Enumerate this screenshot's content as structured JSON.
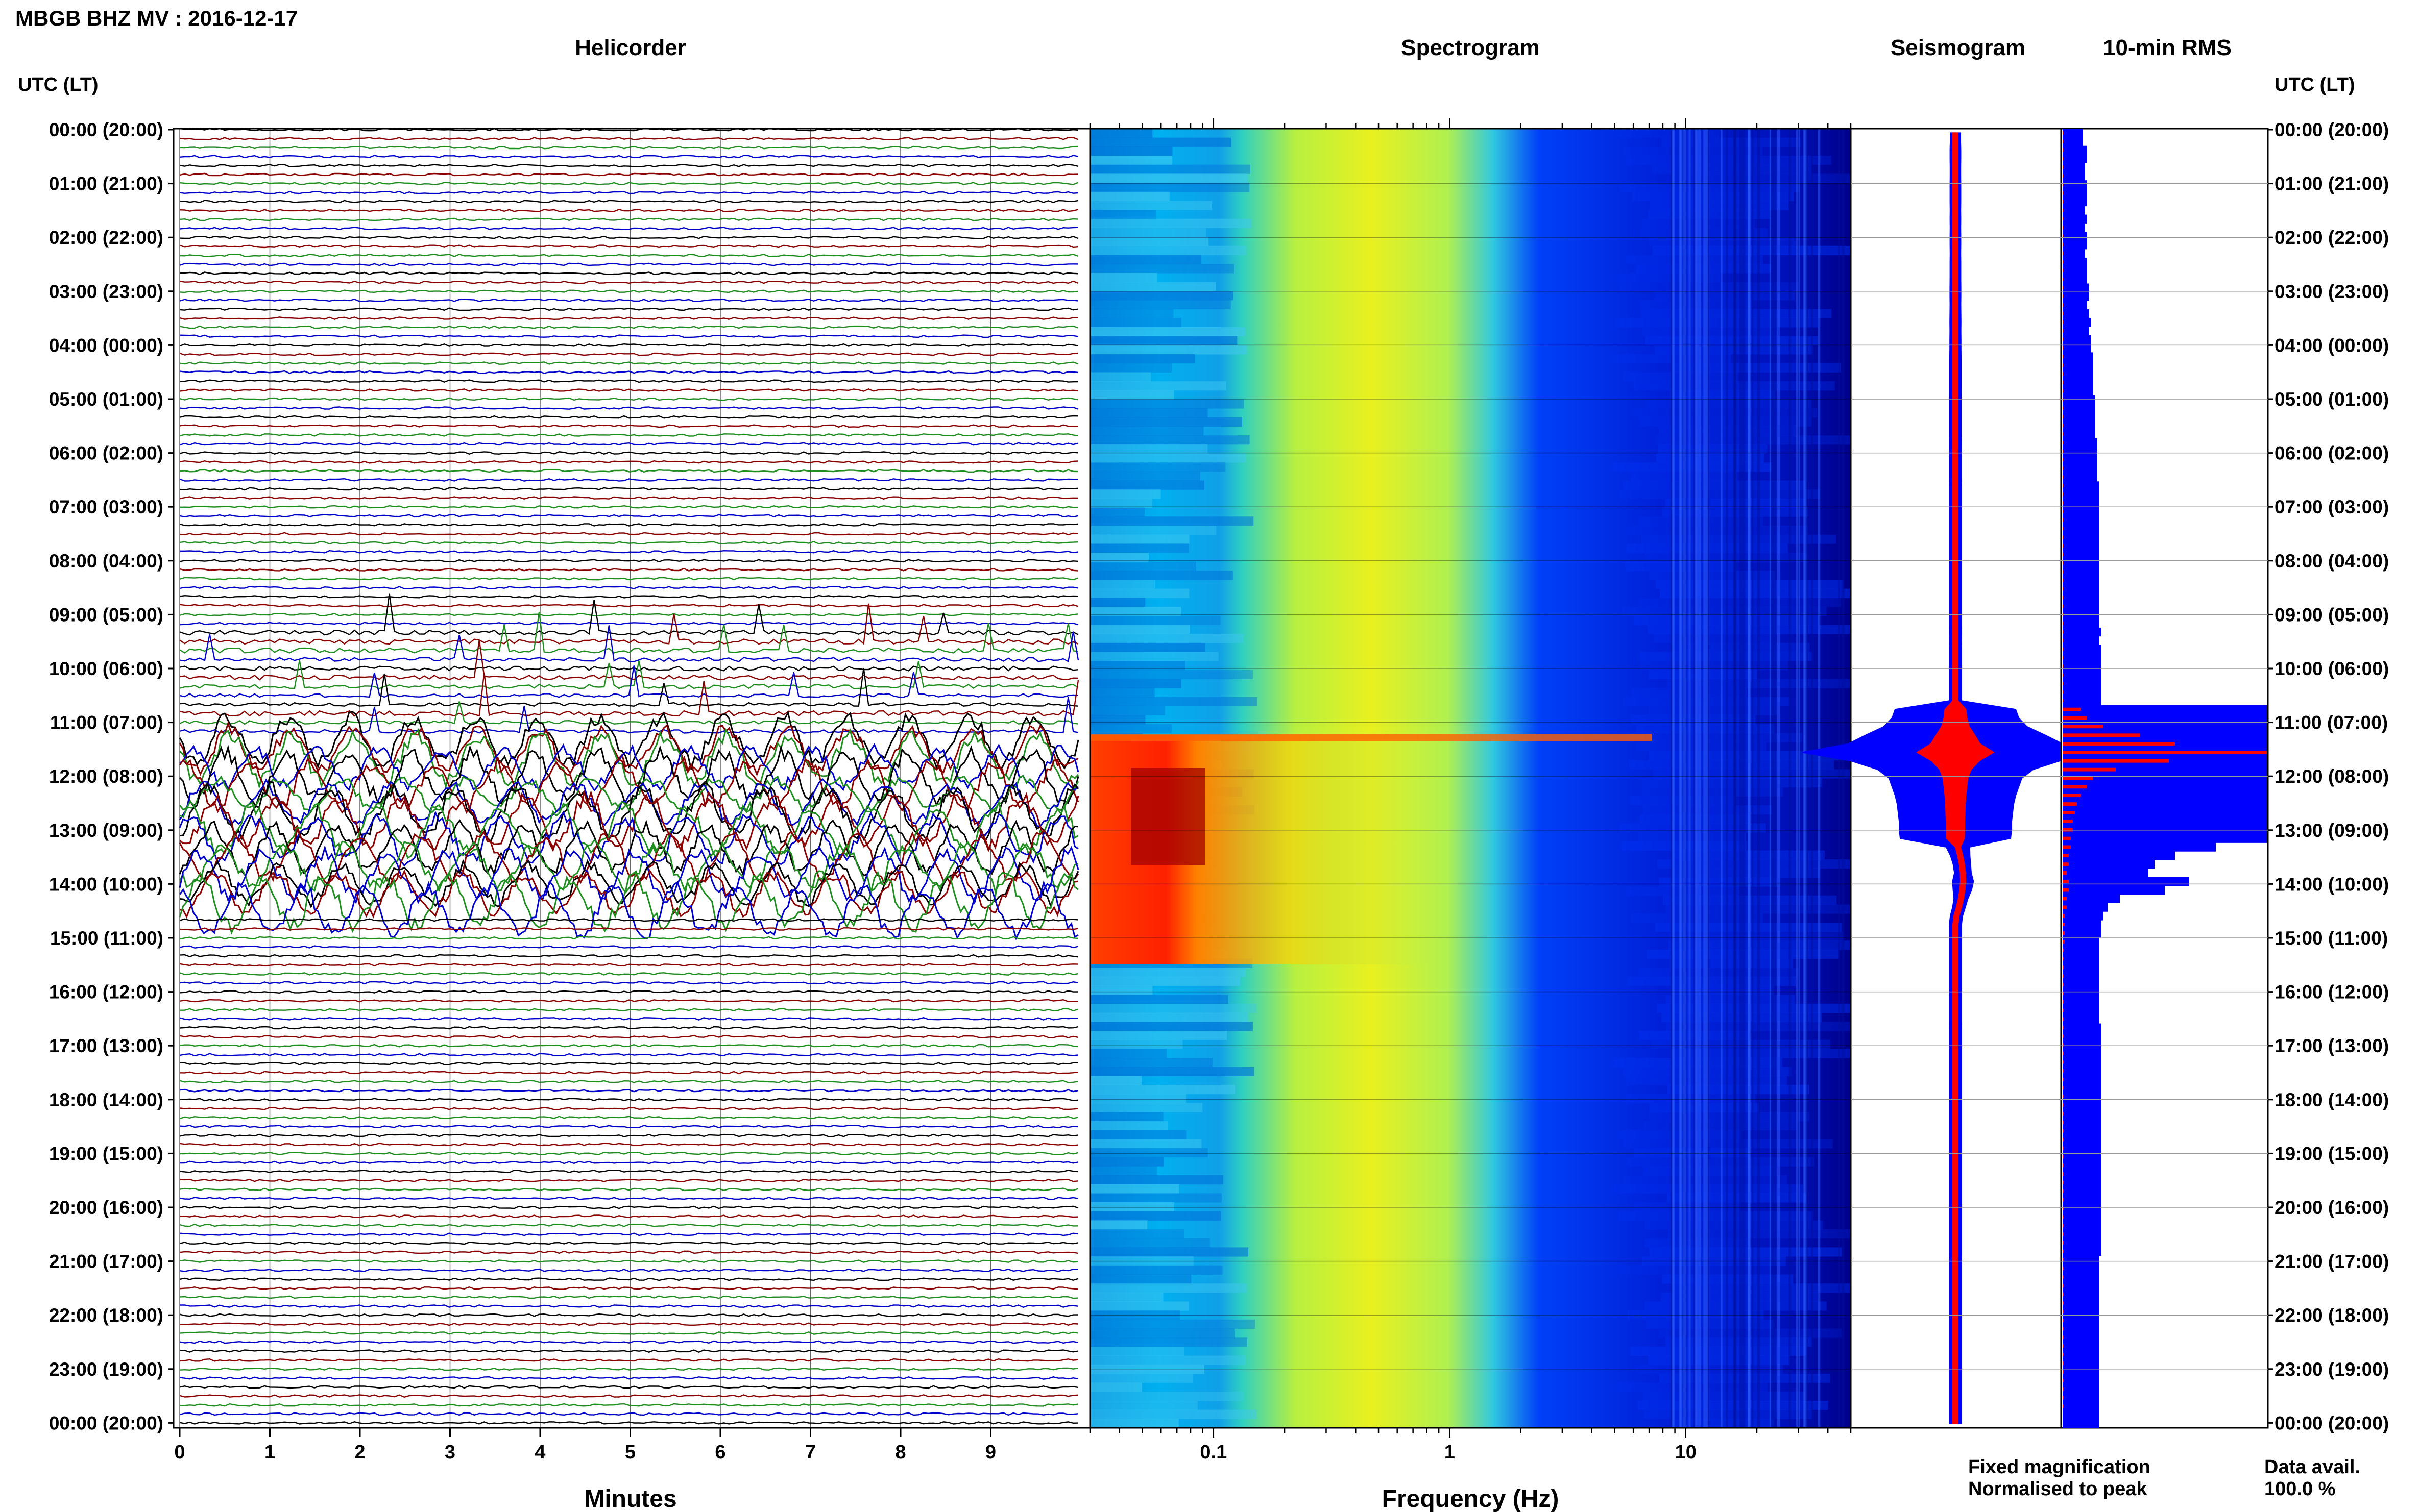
{
  "title": "MBGB BHZ MV : 2016-12-17",
  "panels": {
    "helicorder": "Helicorder",
    "spectrogram": "Spectrogram",
    "seismogram": "Seismogram",
    "rms": "10-min RMS"
  },
  "axis_header_left": "UTC (LT)",
  "axis_header_right": "UTC (LT)",
  "time_labels": [
    "00:00 (20:00)",
    "01:00 (21:00)",
    "02:00 (22:00)",
    "03:00 (23:00)",
    "04:00 (00:00)",
    "05:00 (01:00)",
    "06:00 (02:00)",
    "07:00 (03:00)",
    "08:00 (04:00)",
    "09:00 (05:00)",
    "10:00 (06:00)",
    "11:00 (07:00)",
    "12:00 (08:00)",
    "13:00 (09:00)",
    "14:00 (10:00)",
    "15:00 (11:00)",
    "16:00 (12:00)",
    "17:00 (13:00)",
    "18:00 (14:00)",
    "19:00 (15:00)",
    "20:00 (16:00)",
    "21:00 (17:00)",
    "22:00 (18:00)",
    "23:00 (19:00)",
    "00:00 (20:00)"
  ],
  "minutes_label": "Minutes",
  "minute_ticks": [
    "0",
    "1",
    "2",
    "3",
    "4",
    "5",
    "6",
    "7",
    "8",
    "9"
  ],
  "frequency_label": "Frequency (Hz)",
  "frequency_ticks": [
    "0.1",
    "1",
    "10"
  ],
  "legend": {
    "fixed": "Fixed magnification",
    "normalised": "Normalised to peak",
    "fixed_color": "#0000ff",
    "normalised_color": "#ff0000"
  },
  "data_avail_label": "Data avail.",
  "data_avail_value": "100.0 %",
  "colors": {
    "trace_cycle": [
      "#000000",
      "#8b0000",
      "#1f8f1f",
      "#0000cc"
    ],
    "spectrogram_low": "#00007f",
    "spectrogram_high": "#7f0000"
  },
  "chart_data": {
    "type": "heatmap",
    "time_range_utc_hours": [
      0,
      24
    ],
    "helicorder": {
      "xlim_minutes": [
        0,
        10
      ],
      "lines_per_hour": 6
    },
    "spectrogram": {
      "frequency_range_hz": [
        0.03,
        50
      ],
      "scale": "log",
      "event_start_utc_hour": 11.2,
      "event_end_utc_hour": 14.5
    },
    "rms_10min": {
      "fixed_magnification_relative": [
        0.1,
        0.1,
        0.12,
        0.12,
        0.11,
        0.11,
        0.12,
        0.12,
        0.12,
        0.11,
        0.12,
        0.11,
        0.12,
        0.12,
        0.11,
        0.12,
        0.12,
        0.12,
        0.13,
        0.13,
        0.12,
        0.13,
        0.14,
        0.13,
        0.14,
        0.14,
        0.15,
        0.15,
        0.15,
        0.15,
        0.15,
        0.16,
        0.16,
        0.16,
        0.16,
        0.16,
        0.17,
        0.17,
        0.17,
        0.17,
        0.17,
        0.18,
        0.18,
        0.18,
        0.18,
        0.18,
        0.18,
        0.18,
        0.18,
        0.18,
        0.18,
        0.18,
        0.18,
        0.18,
        0.18,
        0.18,
        0.18,
        0.18,
        0.19,
        0.18,
        0.19,
        0.19,
        0.19,
        0.19,
        0.19,
        0.19,
        0.19,
        1.0,
        1.0,
        1.0,
        1.0,
        1.0,
        1.0,
        1.0,
        1.0,
        1.0,
        1.0,
        1.0,
        1.0,
        1.0,
        1.0,
        1.0,
        1.0,
        0.75,
        0.55,
        0.45,
        0.42,
        0.62,
        0.5,
        0.28,
        0.22,
        0.2,
        0.19,
        0.19,
        0.18,
        0.18,
        0.18,
        0.18,
        0.18,
        0.18,
        0.18,
        0.18,
        0.18,
        0.18,
        0.19,
        0.19,
        0.19,
        0.19,
        0.19,
        0.19,
        0.19,
        0.19,
        0.19,
        0.19,
        0.19,
        0.19,
        0.19,
        0.19,
        0.19,
        0.19,
        0.19,
        0.19,
        0.19,
        0.19,
        0.19,
        0.19,
        0.19,
        0.19,
        0.19,
        0.19,
        0.19,
        0.18,
        0.18,
        0.18,
        0.18,
        0.18,
        0.18,
        0.18,
        0.18,
        0.18,
        0.18,
        0.18,
        0.18,
        0.18,
        0.18,
        0.18,
        0.18,
        0.18,
        0.18,
        0.18,
        0.18
      ],
      "normalised_to_peak_relative": [
        0.002,
        0.002,
        0.002,
        0.002,
        0.002,
        0.002,
        0.002,
        0.002,
        0.002,
        0.002,
        0.002,
        0.002,
        0.002,
        0.002,
        0.002,
        0.002,
        0.002,
        0.002,
        0.002,
        0.002,
        0.002,
        0.002,
        0.002,
        0.002,
        0.002,
        0.002,
        0.002,
        0.002,
        0.002,
        0.002,
        0.002,
        0.002,
        0.002,
        0.002,
        0.002,
        0.002,
        0.002,
        0.002,
        0.002,
        0.002,
        0.002,
        0.002,
        0.002,
        0.002,
        0.002,
        0.002,
        0.002,
        0.002,
        0.002,
        0.002,
        0.002,
        0.002,
        0.002,
        0.002,
        0.002,
        0.002,
        0.002,
        0.002,
        0.002,
        0.002,
        0.002,
        0.002,
        0.002,
        0.002,
        0.002,
        0.002,
        0.002,
        0.09,
        0.12,
        0.2,
        0.38,
        0.55,
        1.0,
        0.52,
        0.26,
        0.15,
        0.12,
        0.09,
        0.07,
        0.06,
        0.05,
        0.05,
        0.04,
        0.04,
        0.03,
        0.03,
        0.02,
        0.03,
        0.03,
        0.02,
        0.02,
        0.01,
        0.01,
        0.01,
        0.01,
        0.005,
        0.005,
        0.005,
        0.005,
        0.005,
        0.005,
        0.005,
        0.005,
        0.005,
        0.005,
        0.005,
        0.005,
        0.005,
        0.005,
        0.005,
        0.005,
        0.005,
        0.005,
        0.005,
        0.005,
        0.005,
        0.005,
        0.005,
        0.005,
        0.005,
        0.005,
        0.005,
        0.005,
        0.005,
        0.005,
        0.005,
        0.005,
        0.005,
        0.005,
        0.005,
        0.005,
        0.005,
        0.005,
        0.005,
        0.005,
        0.005,
        0.005,
        0.005,
        0.005,
        0.005,
        0.005,
        0.005,
        0.005,
        0.005,
        0.005,
        0.005,
        0.005,
        0.005,
        0.005
      ]
    }
  }
}
